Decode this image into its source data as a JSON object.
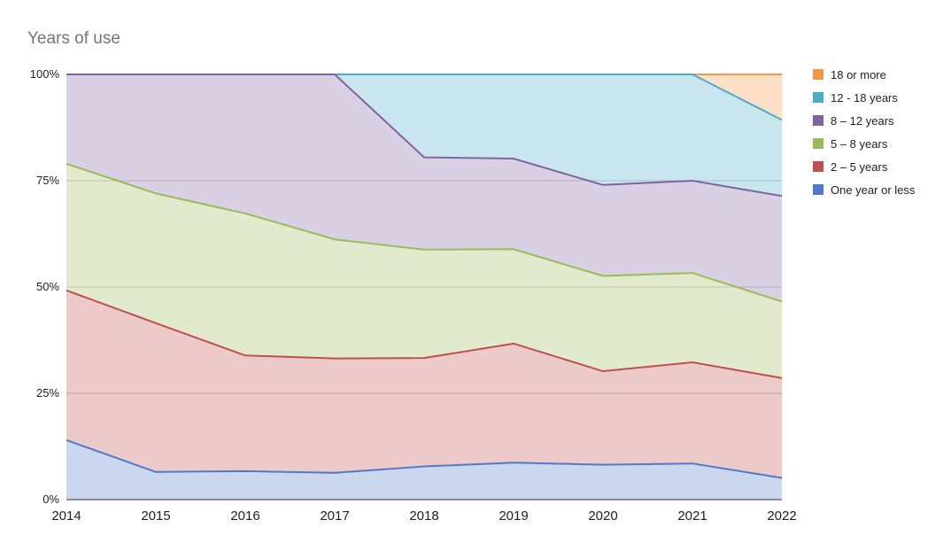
{
  "chart_data": {
    "type": "area",
    "stacked": "percent",
    "title": "Years of use",
    "xlabel": "",
    "ylabel": "",
    "x": [
      "2014",
      "2015",
      "2016",
      "2017",
      "2018",
      "2019",
      "2020",
      "2021",
      "2022"
    ],
    "ylim": [
      0,
      100
    ],
    "yticks": [
      "0%",
      "25%",
      "50%",
      "75%",
      "100%"
    ],
    "yticks_values": [
      0,
      25,
      50,
      75,
      100
    ],
    "grid": true,
    "legend_position": "right",
    "series": [
      {
        "name": "One year or less",
        "color": "#4e7ac7",
        "values": [
          14,
          6.5,
          6.7,
          6.3,
          7.8,
          8.7,
          8.2,
          8.5,
          5.1
        ]
      },
      {
        "name": "2 – 5 years",
        "color": "#c0504d",
        "values": [
          35.2,
          35,
          27.2,
          26.9,
          25.5,
          28,
          22,
          23.8,
          23.5
        ]
      },
      {
        "name": "5 – 8 years",
        "color": "#9bbb59",
        "values": [
          29.8,
          30.5,
          33.4,
          28,
          25.5,
          22.2,
          22.4,
          21,
          18
        ]
      },
      {
        "name": "8 – 12 years",
        "color": "#8064a2",
        "values": [
          21,
          28,
          32.7,
          38.8,
          21.7,
          21.3,
          21.4,
          21.7,
          24.8
        ]
      },
      {
        "name": "12 - 18 years",
        "color": "#4bacc6",
        "values": [
          0,
          0,
          0,
          0,
          19.5,
          19.8,
          26,
          25,
          17.9
        ]
      },
      {
        "name": "18 or more",
        "color": "#f79646",
        "values": [
          0,
          0,
          0,
          0,
          0,
          0,
          0,
          0,
          10.7
        ]
      }
    ]
  }
}
